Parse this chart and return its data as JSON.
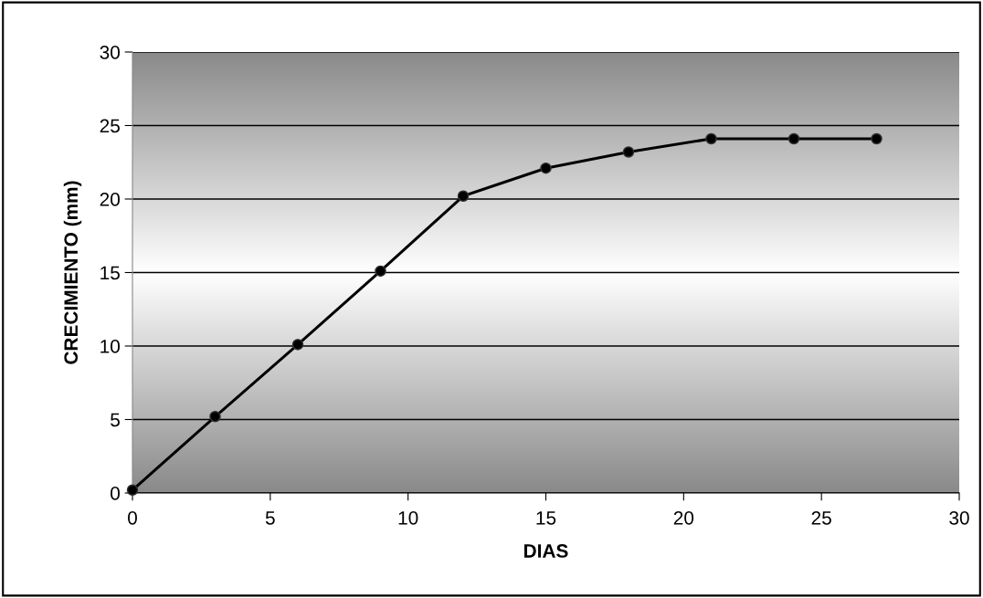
{
  "chart_data": {
    "type": "line",
    "xlabel": "DIAS",
    "ylabel": "CRECIMIENTO (mm)",
    "x": [
      0,
      3,
      6,
      9,
      12,
      15,
      18,
      21,
      24,
      27
    ],
    "series": [
      {
        "color": "#000000",
        "values": [
          0.2,
          5.2,
          10.1,
          15.1,
          20.2,
          22.1,
          23.2,
          24.1,
          24.1,
          24.1
        ]
      }
    ],
    "xlim": [
      0,
      30
    ],
    "xticks": [
      0,
      5,
      10,
      15,
      20,
      25,
      30
    ],
    "ylim": [
      0,
      30
    ],
    "yticks": [
      0,
      5,
      10,
      15,
      20,
      25,
      30
    ],
    "grid": "y",
    "marker": "circle",
    "line_style": "solid"
  }
}
